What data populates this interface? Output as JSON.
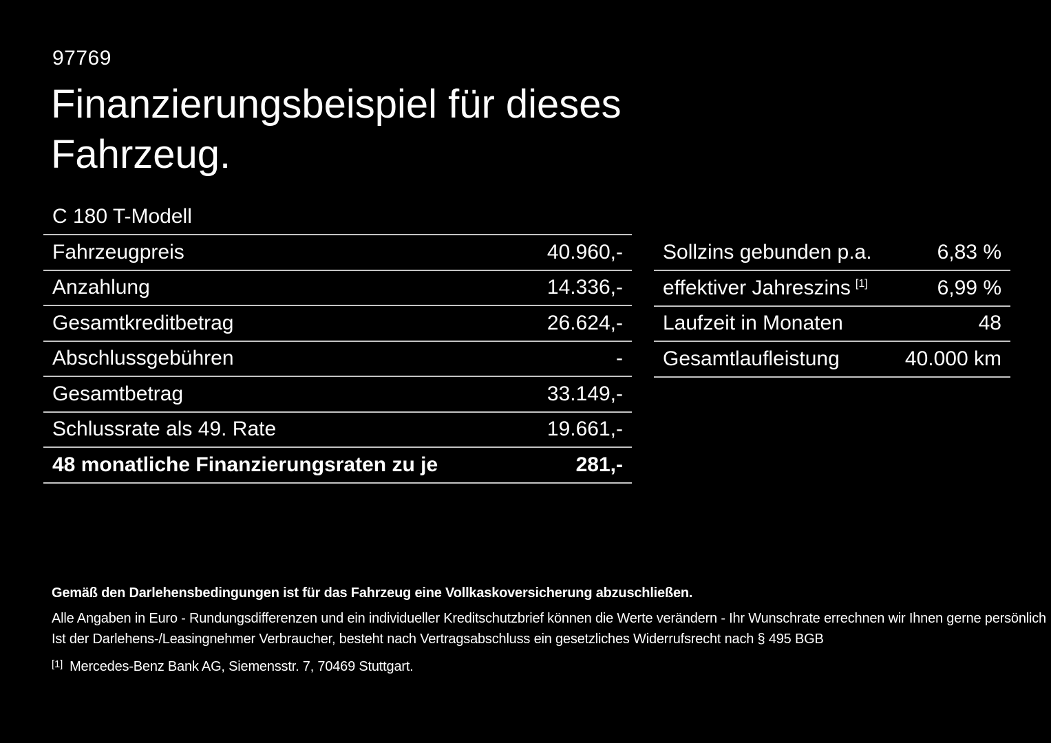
{
  "page": {
    "background": "#000000",
    "text_color": "#fdfdfd",
    "line_color": "#c4c4c4"
  },
  "header": {
    "ref_number": "97769",
    "title": "Finanzierungsbeispiel für dieses Fahrzeug."
  },
  "vehicle": {
    "model": "C 180 T-Modell"
  },
  "left_table": {
    "rows": [
      {
        "label": "Fahrzeugpreis",
        "value": "40.960,-"
      },
      {
        "label": "Anzahlung",
        "value": "14.336,-"
      },
      {
        "label": "Gesamtkreditbetrag",
        "value": "26.624,-"
      },
      {
        "label": "Abschlussgebühren",
        "value": "-"
      },
      {
        "label": "Gesamtbetrag",
        "value": "33.149,-"
      },
      {
        "label": "Schlussrate als 49. Rate",
        "value": "19.661,-"
      },
      {
        "label": "48 monatliche Finanzierungsraten zu je",
        "value": "281,-"
      }
    ]
  },
  "right_table": {
    "rows": [
      {
        "label": "Sollzins gebunden p.a.",
        "sup": "",
        "value": "6,83 %"
      },
      {
        "label": "effektiver Jahreszins",
        "sup": "[1]",
        "value": "6,99 %"
      },
      {
        "label": "Laufzeit in Monaten",
        "sup": "",
        "value": "48"
      },
      {
        "label": "Gesamtlaufleistung",
        "sup": "",
        "value": "40.000 km"
      }
    ]
  },
  "footer": {
    "bold_note": "Gemäß den Darlehensbedingungen ist für das Fahrzeug eine Vollkaskoversicherung abzuschließen.",
    "note_line1": "Alle Angaben in Euro - Rundungsdifferenzen und ein individueller Kreditschutzbrief können die Werte verändern - Ihr Wunschrate errechnen wir Ihnen gerne persönlich",
    "note_line2": "Ist der Darlehens-/Leasingnehmer Verbraucher, besteht nach Vertragsabschluss ein gesetzliches Widerrufsrecht nach § 495 BGB",
    "footnote_marker": "[1]",
    "footnote_text": "Mercedes-Benz Bank AG, Siemensstr. 7, 70469 Stuttgart."
  }
}
